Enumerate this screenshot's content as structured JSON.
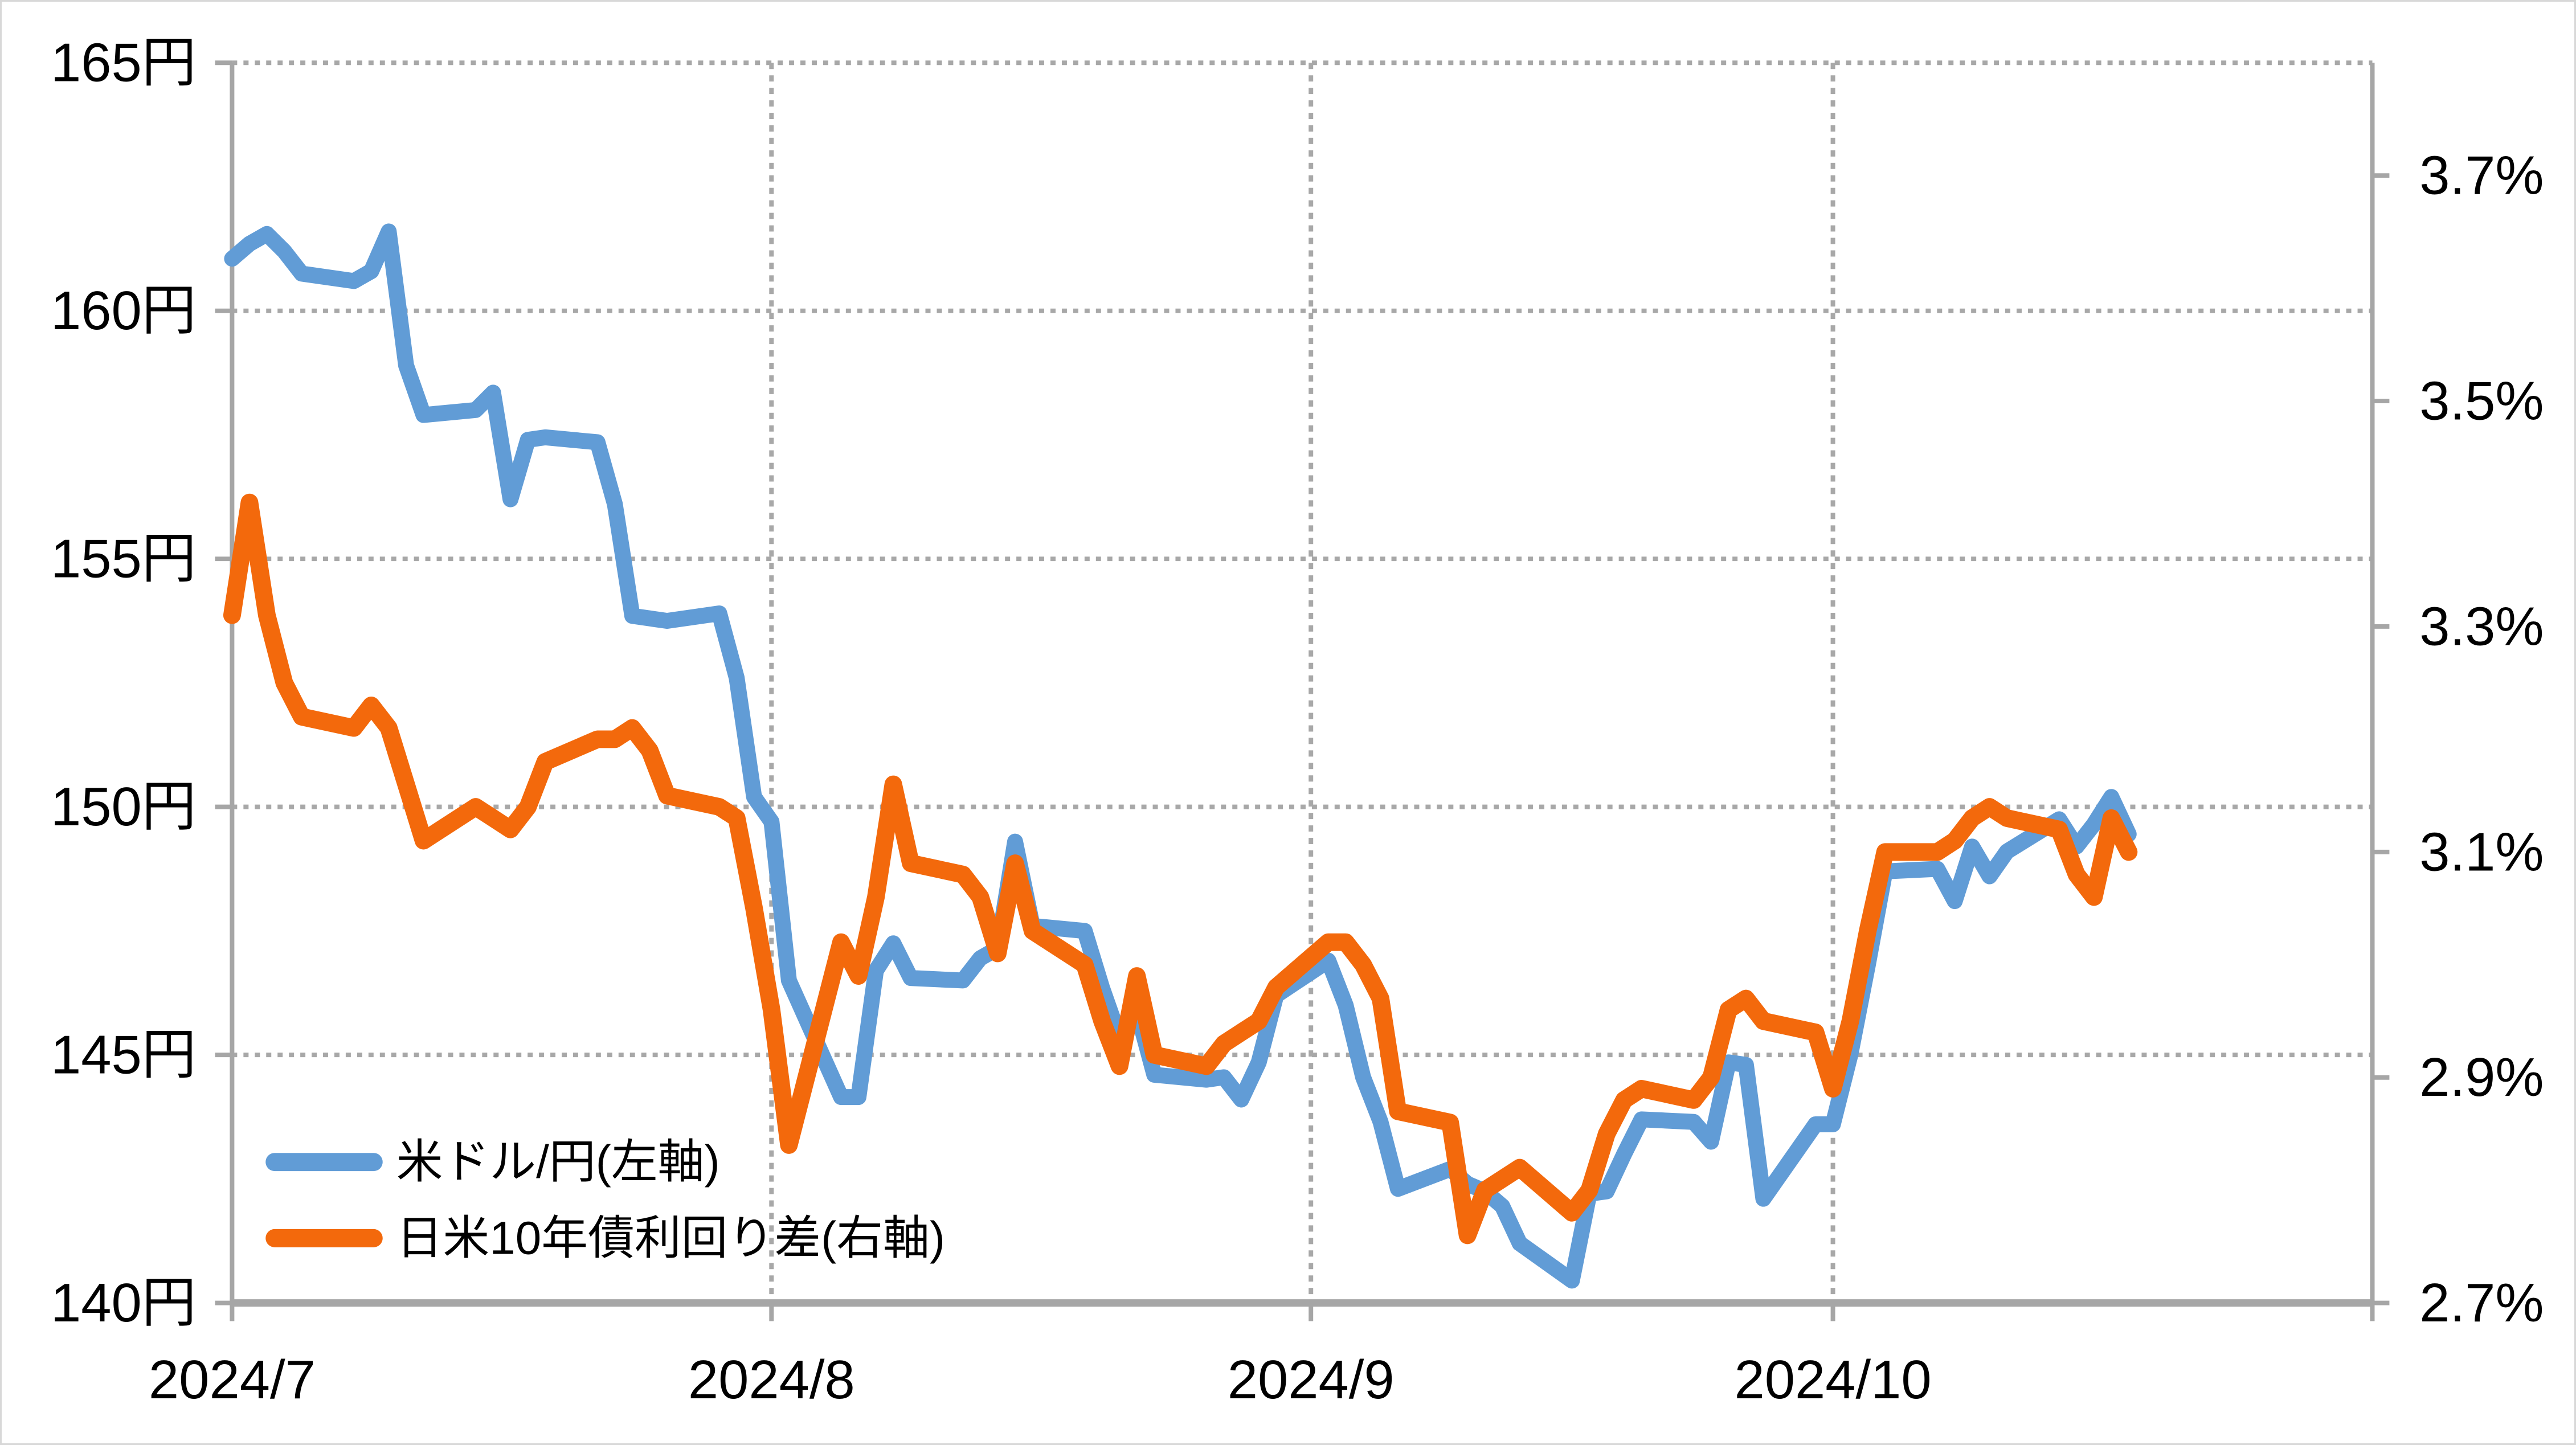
{
  "chart_data": {
    "type": "line",
    "title": "",
    "legend": {
      "position": "inside-bottom-left",
      "items": [
        "米ドル/円(左軸)",
        "日米10年債利回り差(右軸)"
      ]
    },
    "x_axis": {
      "start": "2024-07-01",
      "end": "2024-11-01",
      "tick_dates": [
        "2024-07-01",
        "2024-08-01",
        "2024-09-01",
        "2024-10-01",
        "2024-11-01"
      ],
      "tick_labels": [
        "2024/7",
        "2024/8",
        "2024/9",
        "2024/10"
      ],
      "gridline_dates": [
        "2024-08-01",
        "2024-09-01",
        "2024-10-01"
      ]
    },
    "y_axis_left": {
      "min": 140,
      "max": 165,
      "step": 5,
      "unit": "円",
      "tick_values": [
        140,
        145,
        150,
        155,
        160,
        165
      ],
      "tick_labels": [
        "140円",
        "145円",
        "150円",
        "155円",
        "160円",
        "165円"
      ],
      "gridlines": true
    },
    "y_axis_right": {
      "min": 2.7,
      "max": 3.8,
      "step": 0.2,
      "unit": "%",
      "tick_values": [
        2.7,
        2.9,
        3.1,
        3.3,
        3.5,
        3.7
      ],
      "tick_labels": [
        "2.7%",
        "2.9%",
        "3.1%",
        "3.3%",
        "3.5%",
        "3.7%"
      ],
      "gridlines": false
    },
    "series": [
      {
        "name": "米ドル/円(左軸)",
        "axis": "left",
        "color": "#619CD6",
        "points": [
          {
            "date": "2024-07-01",
            "value": 161.05
          },
          {
            "date": "2024-07-02",
            "value": 161.35
          },
          {
            "date": "2024-07-03",
            "value": 161.55
          },
          {
            "date": "2024-07-04",
            "value": 161.2
          },
          {
            "date": "2024-07-05",
            "value": 160.75
          },
          {
            "date": "2024-07-08",
            "value": 160.6
          },
          {
            "date": "2024-07-09",
            "value": 160.8
          },
          {
            "date": "2024-07-10",
            "value": 161.6
          },
          {
            "date": "2024-07-11",
            "value": 158.9
          },
          {
            "date": "2024-07-12",
            "value": 157.9
          },
          {
            "date": "2024-07-15",
            "value": 158.0
          },
          {
            "date": "2024-07-16",
            "value": 158.35
          },
          {
            "date": "2024-07-17",
            "value": 156.2
          },
          {
            "date": "2024-07-18",
            "value": 157.4
          },
          {
            "date": "2024-07-19",
            "value": 157.45
          },
          {
            "date": "2024-07-22",
            "value": 157.35
          },
          {
            "date": "2024-07-23",
            "value": 156.1
          },
          {
            "date": "2024-07-24",
            "value": 153.85
          },
          {
            "date": "2024-07-25",
            "value": 153.8
          },
          {
            "date": "2024-07-26",
            "value": 153.75
          },
          {
            "date": "2024-07-29",
            "value": 153.9
          },
          {
            "date": "2024-07-30",
            "value": 152.6
          },
          {
            "date": "2024-07-31",
            "value": 150.2
          },
          {
            "date": "2024-08-01",
            "value": 149.7
          },
          {
            "date": "2024-08-02",
            "value": 146.5
          },
          {
            "date": "2024-08-05",
            "value": 144.15
          },
          {
            "date": "2024-08-06",
            "value": 144.15
          },
          {
            "date": "2024-08-07",
            "value": 146.7
          },
          {
            "date": "2024-08-08",
            "value": 147.25
          },
          {
            "date": "2024-08-09",
            "value": 146.55
          },
          {
            "date": "2024-08-12",
            "value": 146.5
          },
          {
            "date": "2024-08-13",
            "value": 146.95
          },
          {
            "date": "2024-08-14",
            "value": 147.15
          },
          {
            "date": "2024-08-15",
            "value": 149.3
          },
          {
            "date": "2024-08-16",
            "value": 147.6
          },
          {
            "date": "2024-08-19",
            "value": 147.5
          },
          {
            "date": "2024-08-20",
            "value": 146.35
          },
          {
            "date": "2024-08-21",
            "value": 145.35
          },
          {
            "date": "2024-08-22",
            "value": 145.9
          },
          {
            "date": "2024-08-23",
            "value": 144.6
          },
          {
            "date": "2024-08-26",
            "value": 144.5
          },
          {
            "date": "2024-08-27",
            "value": 144.55
          },
          {
            "date": "2024-08-28",
            "value": 144.1
          },
          {
            "date": "2024-08-29",
            "value": 144.85
          },
          {
            "date": "2024-08-30",
            "value": 146.2
          },
          {
            "date": "2024-09-02",
            "value": 146.9
          },
          {
            "date": "2024-09-03",
            "value": 146.0
          },
          {
            "date": "2024-09-04",
            "value": 144.55
          },
          {
            "date": "2024-09-05",
            "value": 143.65
          },
          {
            "date": "2024-09-06",
            "value": 142.3
          },
          {
            "date": "2024-09-09",
            "value": 142.7
          },
          {
            "date": "2024-09-10",
            "value": 142.4
          },
          {
            "date": "2024-09-11",
            "value": 142.25
          },
          {
            "date": "2024-09-12",
            "value": 141.95
          },
          {
            "date": "2024-09-13",
            "value": 141.2
          },
          {
            "date": "2024-09-16",
            "value": 140.45
          },
          {
            "date": "2024-09-17",
            "value": 142.2
          },
          {
            "date": "2024-09-18",
            "value": 142.25
          },
          {
            "date": "2024-09-19",
            "value": 143.0
          },
          {
            "date": "2024-09-20",
            "value": 143.7
          },
          {
            "date": "2024-09-23",
            "value": 143.65
          },
          {
            "date": "2024-09-24",
            "value": 143.25
          },
          {
            "date": "2024-09-25",
            "value": 144.85
          },
          {
            "date": "2024-09-26",
            "value": 144.8
          },
          {
            "date": "2024-09-27",
            "value": 142.1
          },
          {
            "date": "2024-09-30",
            "value": 143.6
          },
          {
            "date": "2024-10-01",
            "value": 143.6
          },
          {
            "date": "2024-10-02",
            "value": 145.0
          },
          {
            "date": "2024-10-03",
            "value": 146.8
          },
          {
            "date": "2024-10-04",
            "value": 148.7
          },
          {
            "date": "2024-10-07",
            "value": 148.75
          },
          {
            "date": "2024-10-08",
            "value": 148.1
          },
          {
            "date": "2024-10-09",
            "value": 149.2
          },
          {
            "date": "2024-10-10",
            "value": 148.6
          },
          {
            "date": "2024-10-11",
            "value": 149.1
          },
          {
            "date": "2024-10-14",
            "value": 149.75
          },
          {
            "date": "2024-10-15",
            "value": 149.2
          },
          {
            "date": "2024-10-16",
            "value": 149.65
          },
          {
            "date": "2024-10-17",
            "value": 150.2
          },
          {
            "date": "2024-10-18",
            "value": 149.45
          }
        ]
      },
      {
        "name": "日米10年債利回り差(右軸)",
        "axis": "right",
        "color": "#F3690C",
        "points": [
          {
            "date": "2024-07-01",
            "value": 3.31
          },
          {
            "date": "2024-07-02",
            "value": 3.41
          },
          {
            "date": "2024-07-03",
            "value": 3.31
          },
          {
            "date": "2024-07-04",
            "value": 3.25
          },
          {
            "date": "2024-07-05",
            "value": 3.22
          },
          {
            "date": "2024-07-08",
            "value": 3.21
          },
          {
            "date": "2024-07-09",
            "value": 3.23
          },
          {
            "date": "2024-07-10",
            "value": 3.21
          },
          {
            "date": "2024-07-11",
            "value": 3.16
          },
          {
            "date": "2024-07-12",
            "value": 3.11
          },
          {
            "date": "2024-07-15",
            "value": 3.14
          },
          {
            "date": "2024-07-16",
            "value": 3.13
          },
          {
            "date": "2024-07-17",
            "value": 3.12
          },
          {
            "date": "2024-07-18",
            "value": 3.14
          },
          {
            "date": "2024-07-19",
            "value": 3.18
          },
          {
            "date": "2024-07-22",
            "value": 3.2
          },
          {
            "date": "2024-07-23",
            "value": 3.2
          },
          {
            "date": "2024-07-24",
            "value": 3.21
          },
          {
            "date": "2024-07-25",
            "value": 3.19
          },
          {
            "date": "2024-07-26",
            "value": 3.15
          },
          {
            "date": "2024-07-29",
            "value": 3.14
          },
          {
            "date": "2024-07-30",
            "value": 3.13
          },
          {
            "date": "2024-07-31",
            "value": 3.05
          },
          {
            "date": "2024-08-01",
            "value": 2.96
          },
          {
            "date": "2024-08-02",
            "value": 2.84
          },
          {
            "date": "2024-08-05",
            "value": 3.02
          },
          {
            "date": "2024-08-06",
            "value": 2.99
          },
          {
            "date": "2024-08-07",
            "value": 3.06
          },
          {
            "date": "2024-08-08",
            "value": 3.16
          },
          {
            "date": "2024-08-09",
            "value": 3.09
          },
          {
            "date": "2024-08-12",
            "value": 3.08
          },
          {
            "date": "2024-08-13",
            "value": 3.06
          },
          {
            "date": "2024-08-14",
            "value": 3.01
          },
          {
            "date": "2024-08-15",
            "value": 3.09
          },
          {
            "date": "2024-08-16",
            "value": 3.03
          },
          {
            "date": "2024-08-19",
            "value": 3.0
          },
          {
            "date": "2024-08-20",
            "value": 2.95
          },
          {
            "date": "2024-08-21",
            "value": 2.91
          },
          {
            "date": "2024-08-22",
            "value": 2.99
          },
          {
            "date": "2024-08-23",
            "value": 2.92
          },
          {
            "date": "2024-08-26",
            "value": 2.91
          },
          {
            "date": "2024-08-27",
            "value": 2.93
          },
          {
            "date": "2024-08-28",
            "value": 2.94
          },
          {
            "date": "2024-08-29",
            "value": 2.95
          },
          {
            "date": "2024-08-30",
            "value": 2.98
          },
          {
            "date": "2024-09-02",
            "value": 3.02
          },
          {
            "date": "2024-09-03",
            "value": 3.02
          },
          {
            "date": "2024-09-04",
            "value": 3.0
          },
          {
            "date": "2024-09-05",
            "value": 2.97
          },
          {
            "date": "2024-09-06",
            "value": 2.87
          },
          {
            "date": "2024-09-09",
            "value": 2.86
          },
          {
            "date": "2024-09-10",
            "value": 2.76
          },
          {
            "date": "2024-09-11",
            "value": 2.8
          },
          {
            "date": "2024-09-12",
            "value": 2.81
          },
          {
            "date": "2024-09-13",
            "value": 2.82
          },
          {
            "date": "2024-09-16",
            "value": 2.78
          },
          {
            "date": "2024-09-17",
            "value": 2.8
          },
          {
            "date": "2024-09-18",
            "value": 2.85
          },
          {
            "date": "2024-09-19",
            "value": 2.88
          },
          {
            "date": "2024-09-20",
            "value": 2.89
          },
          {
            "date": "2024-09-23",
            "value": 2.88
          },
          {
            "date": "2024-09-24",
            "value": 2.9
          },
          {
            "date": "2024-09-25",
            "value": 2.96
          },
          {
            "date": "2024-09-26",
            "value": 2.97
          },
          {
            "date": "2024-09-27",
            "value": 2.95
          },
          {
            "date": "2024-09-30",
            "value": 2.94
          },
          {
            "date": "2024-10-01",
            "value": 2.89
          },
          {
            "date": "2024-10-02",
            "value": 2.95
          },
          {
            "date": "2024-10-03",
            "value": 3.03
          },
          {
            "date": "2024-10-04",
            "value": 3.1
          },
          {
            "date": "2024-10-07",
            "value": 3.1
          },
          {
            "date": "2024-10-08",
            "value": 3.11
          },
          {
            "date": "2024-10-09",
            "value": 3.13
          },
          {
            "date": "2024-10-10",
            "value": 3.14
          },
          {
            "date": "2024-10-11",
            "value": 3.13
          },
          {
            "date": "2024-10-14",
            "value": 3.12
          },
          {
            "date": "2024-10-15",
            "value": 3.08
          },
          {
            "date": "2024-10-16",
            "value": 3.06
          },
          {
            "date": "2024-10-17",
            "value": 3.13
          },
          {
            "date": "2024-10-18",
            "value": 3.1
          }
        ]
      }
    ],
    "colors": {
      "usdjpy_line": "#619CD6",
      "yield_spread_line": "#F3690C",
      "axis": "#A6A6A6",
      "gridline": "#A8A8A8",
      "text": "#000000"
    }
  }
}
